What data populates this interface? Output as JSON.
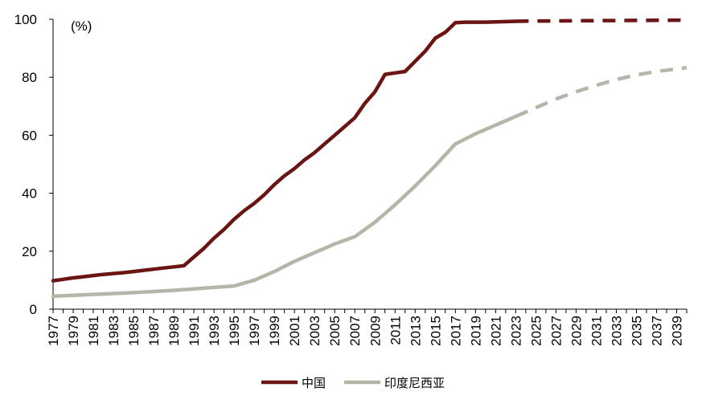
{
  "chart_data": {
    "type": "line",
    "unit_label": "(%)",
    "ylim": [
      0,
      100
    ],
    "y_ticks": [
      "0",
      "20",
      "40",
      "60",
      "80",
      "100"
    ],
    "xlim": [
      1977,
      2040
    ],
    "x_ticks": [
      "1977",
      "1979",
      "1981",
      "1983",
      "1985",
      "1987",
      "1989",
      "1991",
      "1993",
      "1995",
      "1997",
      "1999",
      "2001",
      "2003",
      "2005",
      "2007",
      "2009",
      "2011",
      "2013",
      "2015",
      "2017",
      "2019",
      "2021",
      "2023",
      "2025",
      "2027",
      "2029",
      "2031",
      "2033",
      "2035",
      "2037",
      "2039"
    ],
    "forecast_from": 2023,
    "grid": false,
    "legend_position": "bottom-center",
    "series": [
      {
        "name": "中国",
        "color": "#6B1414",
        "x": [
          1977,
          1978,
          1979,
          1980,
          1981,
          1982,
          1983,
          1984,
          1985,
          1986,
          1987,
          1988,
          1989,
          1990,
          1991,
          1992,
          1993,
          1994,
          1995,
          1996,
          1997,
          1998,
          1999,
          2000,
          2001,
          2002,
          2003,
          2004,
          2005,
          2006,
          2007,
          2008,
          2009,
          2010,
          2011,
          2012,
          2013,
          2014,
          2015,
          2016,
          2017,
          2018,
          2019,
          2020,
          2021,
          2022,
          2023,
          2025,
          2030,
          2035,
          2040
        ],
        "y": [
          9.8,
          10.3,
          10.8,
          11.2,
          11.6,
          12.0,
          12.3,
          12.6,
          13.0,
          13.4,
          13.8,
          14.2,
          14.6,
          15.0,
          18.0,
          21.0,
          24.5,
          27.5,
          31.0,
          34.0,
          36.5,
          39.5,
          43.0,
          46.0,
          48.5,
          51.5,
          54.0,
          57.0,
          60.0,
          63.0,
          66.0,
          71.0,
          75.0,
          81.0,
          81.5,
          82.0,
          85.5,
          89.0,
          93.5,
          95.5,
          98.8,
          99.0,
          99.0,
          99.0,
          99.1,
          99.2,
          99.3,
          99.4,
          99.5,
          99.6,
          99.7
        ]
      },
      {
        "name": "印度尼西亚",
        "color": "#B3B7A8",
        "x": [
          1977,
          1979,
          1981,
          1983,
          1985,
          1987,
          1989,
          1991,
          1993,
          1995,
          1997,
          1999,
          2001,
          2003,
          2005,
          2007,
          2009,
          2011,
          2013,
          2015,
          2017,
          2019,
          2021,
          2023,
          2025,
          2027,
          2029,
          2031,
          2033,
          2035,
          2037,
          2040
        ],
        "y": [
          4.5,
          4.8,
          5.1,
          5.4,
          5.7,
          6.1,
          6.5,
          7.0,
          7.5,
          8.0,
          10.0,
          13.0,
          16.5,
          19.5,
          22.5,
          25.0,
          30.0,
          36.0,
          42.5,
          49.5,
          57.0,
          60.5,
          63.5,
          66.5,
          69.5,
          72.5,
          75.0,
          77.2,
          79.2,
          80.8,
          82.0,
          83.3
        ]
      }
    ]
  }
}
